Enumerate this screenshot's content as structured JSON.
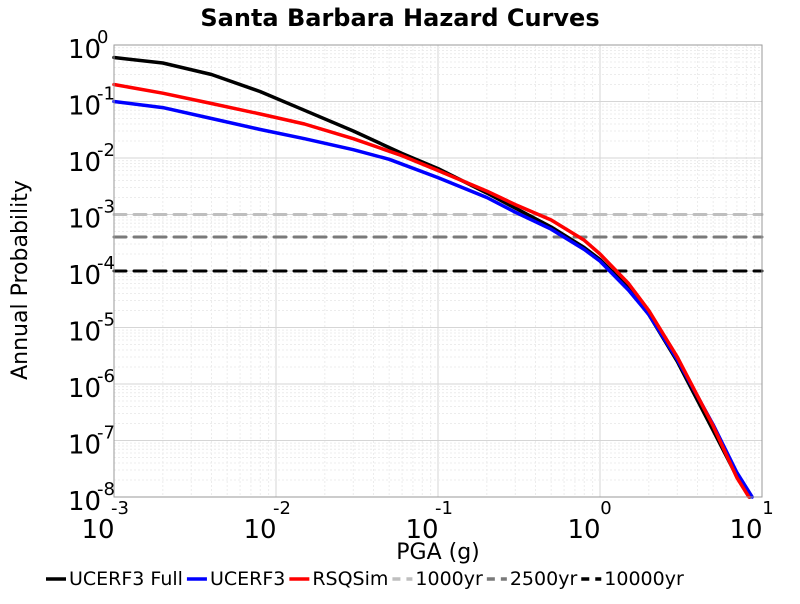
{
  "chart_data": {
    "type": "line",
    "title": "Santa Barbara Hazard Curves",
    "xlabel": "PGA (g)",
    "ylabel": "Annual Probability",
    "x_scale": "log",
    "y_scale": "log",
    "xlim": [
      0.001,
      10
    ],
    "ylim": [
      1e-08,
      1
    ],
    "grid": true,
    "legend_position": "bottom",
    "x_ticks": [
      {
        "value": 0.001,
        "base": "10",
        "exp": "-3"
      },
      {
        "value": 0.01,
        "base": "10",
        "exp": "-2"
      },
      {
        "value": 0.1,
        "base": "10",
        "exp": "-1"
      },
      {
        "value": 1,
        "base": "10",
        "exp": "0"
      },
      {
        "value": 10,
        "base": "10",
        "exp": "1"
      }
    ],
    "y_ticks": [
      {
        "value": 1,
        "base": "10",
        "exp": "0"
      },
      {
        "value": 0.1,
        "base": "10",
        "exp": "-1"
      },
      {
        "value": 0.01,
        "base": "10",
        "exp": "-2"
      },
      {
        "value": 0.001,
        "base": "10",
        "exp": "-3"
      },
      {
        "value": 0.0001,
        "base": "10",
        "exp": "-4"
      },
      {
        "value": 1e-05,
        "base": "10",
        "exp": "-5"
      },
      {
        "value": 1e-06,
        "base": "10",
        "exp": "-6"
      },
      {
        "value": 1e-07,
        "base": "10",
        "exp": "-7"
      },
      {
        "value": 1e-08,
        "base": "10",
        "exp": "-8"
      }
    ],
    "series": [
      {
        "name": "UCERF3 Full",
        "color": "#000000",
        "style": "solid",
        "points": [
          [
            0.001,
            0.6
          ],
          [
            0.002,
            0.48
          ],
          [
            0.004,
            0.3
          ],
          [
            0.008,
            0.15
          ],
          [
            0.015,
            0.07
          ],
          [
            0.03,
            0.03
          ],
          [
            0.06,
            0.012
          ],
          [
            0.1,
            0.0065
          ],
          [
            0.2,
            0.0024
          ],
          [
            0.3,
            0.0013
          ],
          [
            0.5,
            0.0006
          ],
          [
            0.8,
            0.00026
          ],
          [
            1.0,
            0.00016
          ],
          [
            1.5,
            5e-05
          ],
          [
            2.0,
            1.7e-05
          ],
          [
            3.0,
            2.5e-06
          ],
          [
            5.0,
            1.5e-07
          ],
          [
            7.0,
            2.3e-08
          ],
          [
            8.4,
            1e-08
          ]
        ]
      },
      {
        "name": "UCERF3",
        "color": "#0000ff",
        "style": "solid",
        "points": [
          [
            0.001,
            0.1
          ],
          [
            0.002,
            0.078
          ],
          [
            0.004,
            0.05
          ],
          [
            0.008,
            0.032
          ],
          [
            0.015,
            0.022
          ],
          [
            0.03,
            0.014
          ],
          [
            0.05,
            0.0095
          ],
          [
            0.1,
            0.0045
          ],
          [
            0.2,
            0.002
          ],
          [
            0.3,
            0.0011
          ],
          [
            0.5,
            0.00055
          ],
          [
            0.8,
            0.00024
          ],
          [
            1.0,
            0.00015
          ],
          [
            1.5,
            4.6e-05
          ],
          [
            2.0,
            1.7e-05
          ],
          [
            3.0,
            2.7e-06
          ],
          [
            5.0,
            1.9e-07
          ],
          [
            7.0,
            2.7e-08
          ],
          [
            8.7,
            1e-08
          ]
        ]
      },
      {
        "name": "RSQSim",
        "color": "#ff0000",
        "style": "solid",
        "points": [
          [
            0.001,
            0.2
          ],
          [
            0.002,
            0.14
          ],
          [
            0.004,
            0.092
          ],
          [
            0.008,
            0.06
          ],
          [
            0.015,
            0.04
          ],
          [
            0.03,
            0.022
          ],
          [
            0.06,
            0.011
          ],
          [
            0.1,
            0.006
          ],
          [
            0.2,
            0.0026
          ],
          [
            0.3,
            0.0015
          ],
          [
            0.5,
            0.0008
          ],
          [
            0.8,
            0.00035
          ],
          [
            1.0,
            0.0002
          ],
          [
            1.5,
            6e-05
          ],
          [
            2.0,
            2e-05
          ],
          [
            3.0,
            3e-06
          ],
          [
            5.0,
            1.8e-07
          ],
          [
            7.0,
            2.2e-08
          ],
          [
            8.3,
            1e-08
          ]
        ]
      },
      {
        "name": "1000yr",
        "color": "#bfbfbf",
        "style": "dashed",
        "points": [
          [
            0.001,
            0.001
          ],
          [
            10,
            0.001
          ]
        ]
      },
      {
        "name": "2500yr",
        "color": "#7a7a7a",
        "style": "dashed",
        "points": [
          [
            0.001,
            0.0004
          ],
          [
            10,
            0.0004
          ]
        ]
      },
      {
        "name": "10000yr",
        "color": "#000000",
        "style": "dashed",
        "points": [
          [
            0.001,
            0.0001
          ],
          [
            10,
            0.0001
          ]
        ]
      }
    ]
  }
}
